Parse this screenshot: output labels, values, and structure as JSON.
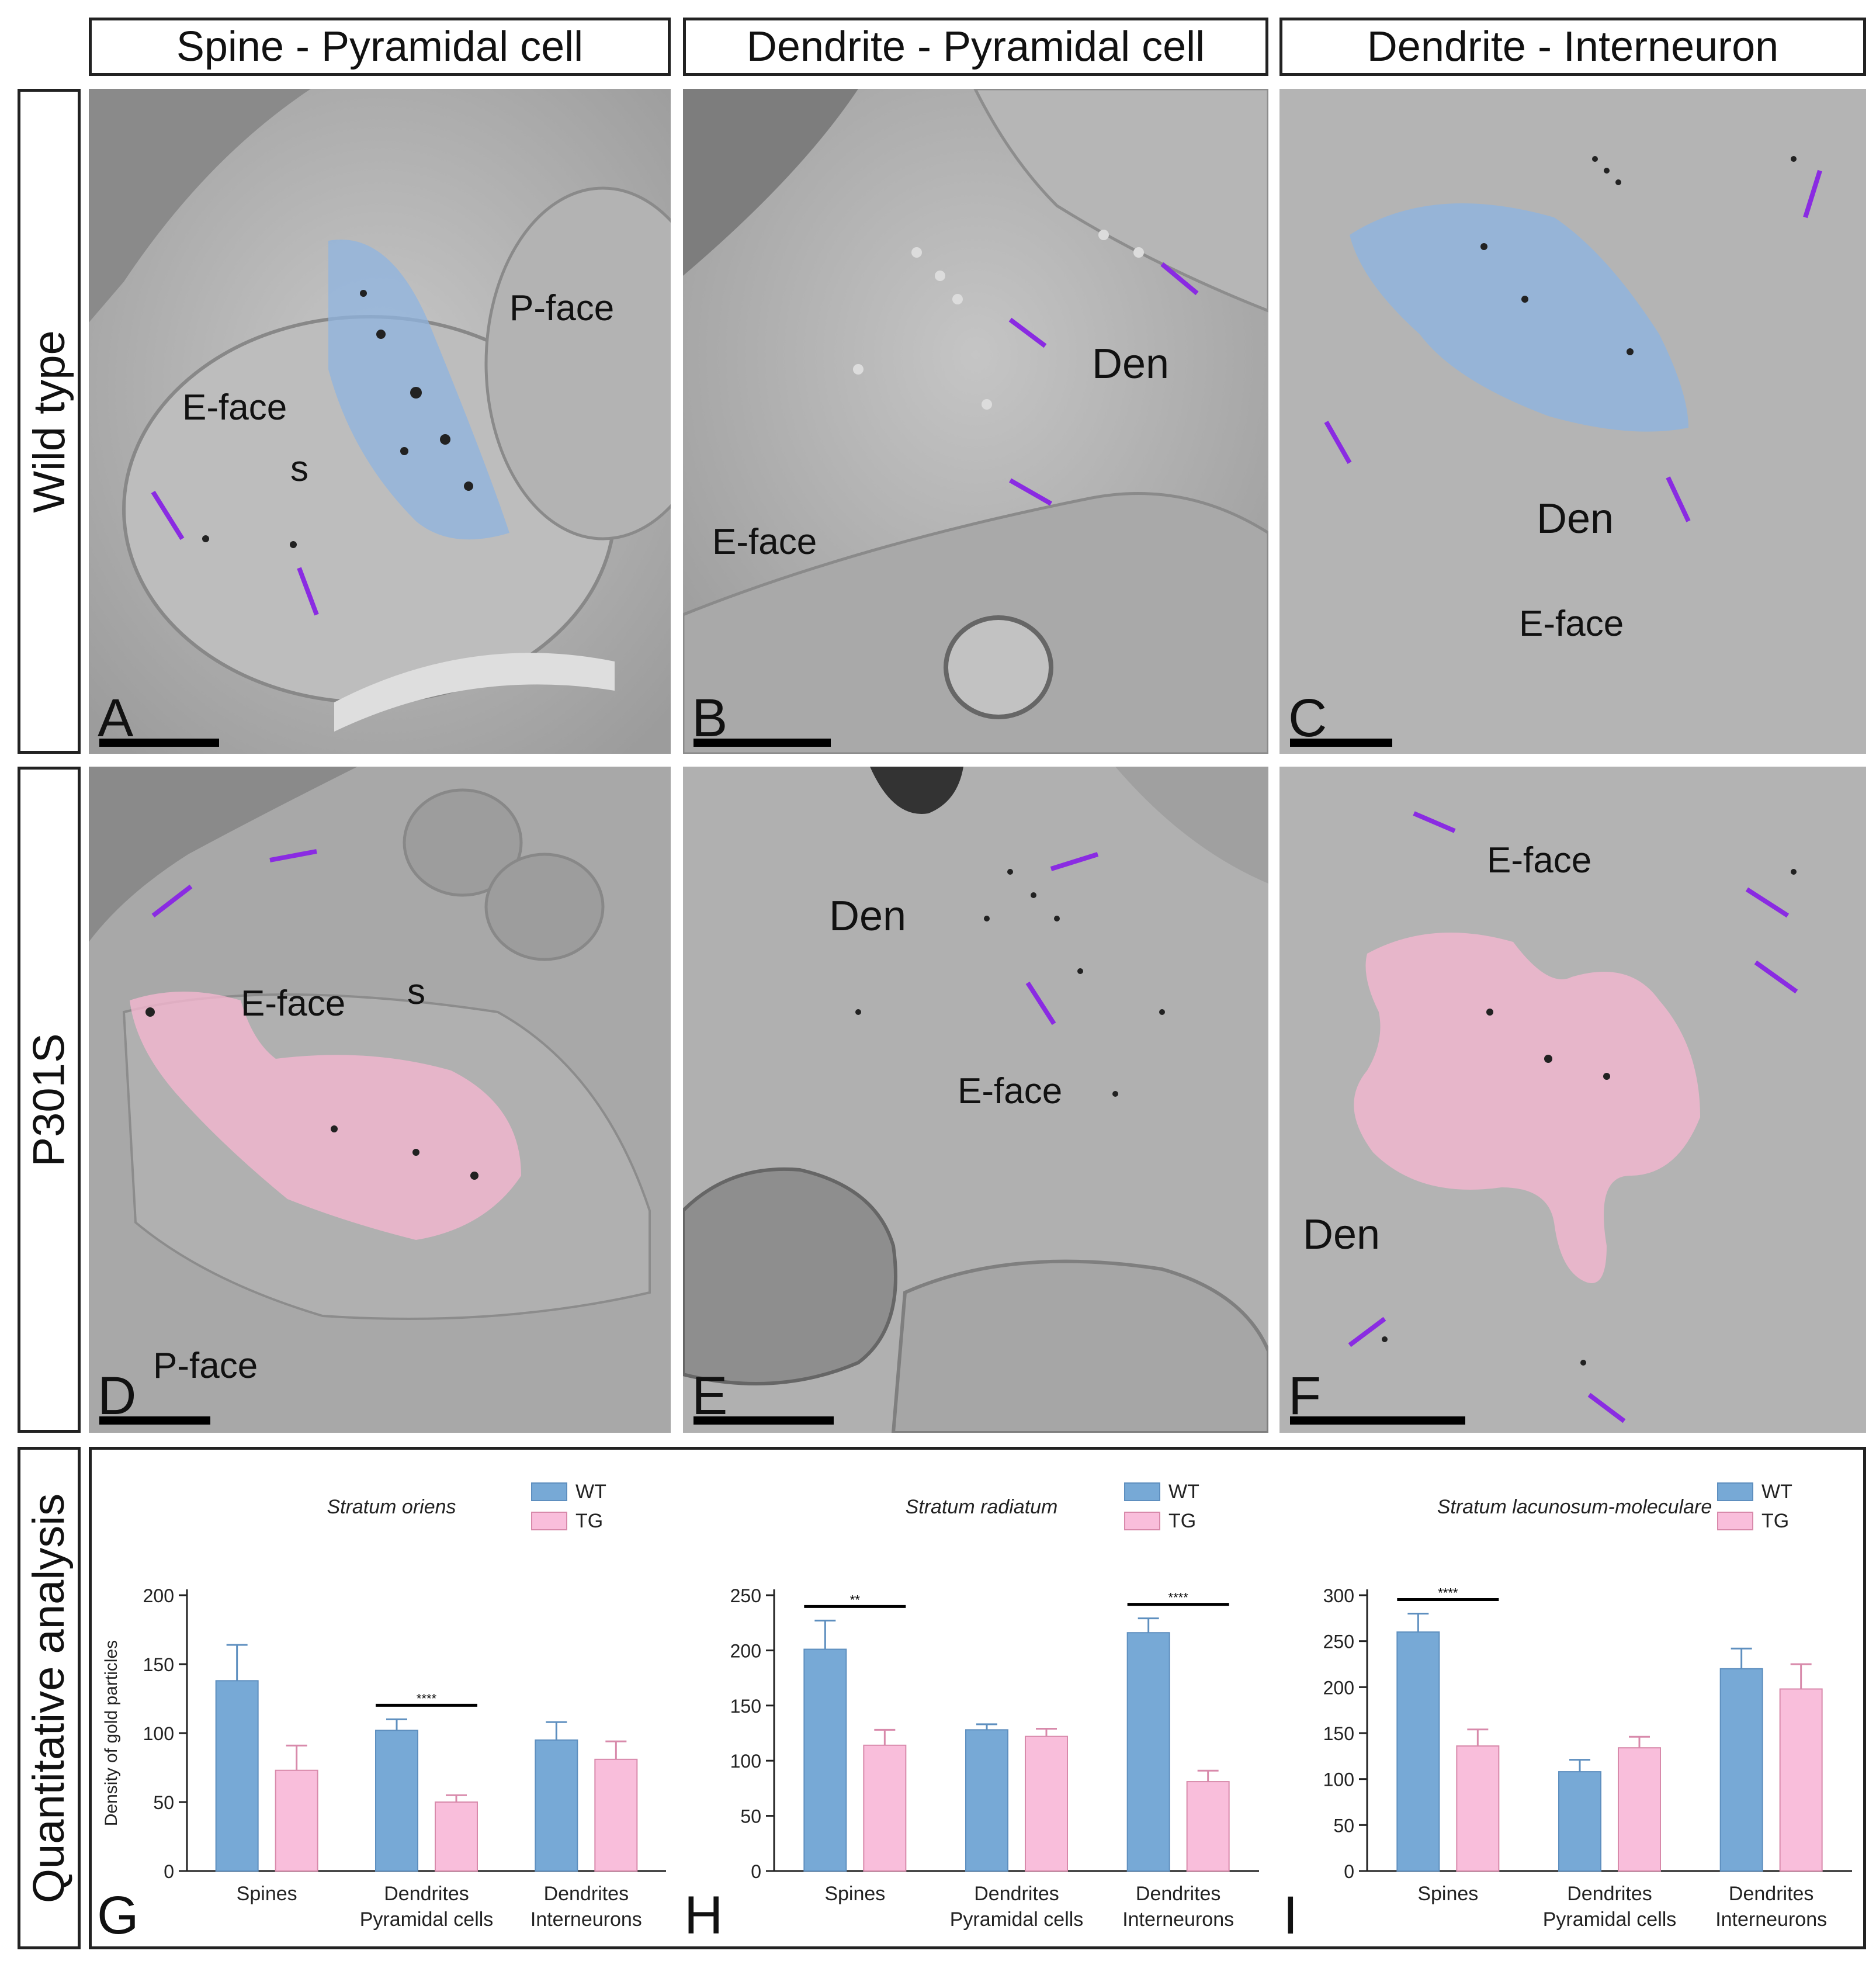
{
  "columns": [
    "Spine - Pyramidal cell",
    "Dendrite - Pyramidal cell",
    "Dendrite - Interneuron"
  ],
  "rows": [
    "Wild type",
    "P301S",
    "Quantitative analysis"
  ],
  "panels": {
    "A": {
      "letter": "A",
      "labels": [
        "E-face",
        "s",
        "P-face"
      ]
    },
    "B": {
      "letter": "B",
      "labels": [
        "Den",
        "E-face"
      ]
    },
    "C": {
      "letter": "C",
      "labels": [
        "Den",
        "E-face"
      ]
    },
    "D": {
      "letter": "D",
      "labels": [
        "E-face",
        "s",
        "P-face"
      ]
    },
    "E": {
      "letter": "E",
      "labels": [
        "Den",
        "E-face"
      ]
    },
    "F": {
      "letter": "F",
      "labels": [
        "E-face",
        "Den"
      ]
    }
  },
  "colors": {
    "wt": "#77a9d6",
    "tg": "#f9bedb",
    "arrow": "#8a2be2",
    "overlay_blue": "#8fb4e0",
    "overlay_pink": "#f4b7cf"
  },
  "chart_data": [
    {
      "panel": "G",
      "type": "bar",
      "title": "Stratum oriens",
      "ylabel": "Density of gold particles",
      "ylim": [
        0,
        200
      ],
      "yticks": [
        0,
        50,
        100,
        150,
        200
      ],
      "categories": [
        [
          "Spines"
        ],
        [
          "Dendrites",
          "Pyramidal cells"
        ],
        [
          "Dendrites",
          "Interneurons"
        ]
      ],
      "legend": "top-right",
      "series": [
        {
          "name": "WT",
          "color": "#77a9d6",
          "values": [
            138,
            102,
            95
          ],
          "errors": [
            26,
            8,
            13
          ]
        },
        {
          "name": "TG",
          "color": "#f9bedb",
          "values": [
            73,
            50,
            81
          ],
          "errors": [
            18,
            5,
            13
          ]
        }
      ],
      "significance": [
        {
          "category": 1,
          "label": "****"
        }
      ]
    },
    {
      "panel": "H",
      "type": "bar",
      "title": "Stratum radiatum",
      "ylabel": "",
      "ylim": [
        0,
        250
      ],
      "yticks": [
        0,
        50,
        100,
        150,
        200,
        250
      ],
      "categories": [
        [
          "Spines"
        ],
        [
          "Dendrites",
          "Pyramidal cells"
        ],
        [
          "Dendrites",
          "Interneurons"
        ]
      ],
      "legend": "top-right",
      "series": [
        {
          "name": "WT",
          "color": "#77a9d6",
          "values": [
            201,
            128,
            216
          ],
          "errors": [
            26,
            5,
            13
          ]
        },
        {
          "name": "TG",
          "color": "#f9bedb",
          "values": [
            114,
            122,
            81
          ],
          "errors": [
            14,
            7,
            10
          ]
        }
      ],
      "significance": [
        {
          "category": 0,
          "label": "**"
        },
        {
          "category": 2,
          "label": "****"
        }
      ]
    },
    {
      "panel": "I",
      "type": "bar",
      "title": "Stratum lacunosum-moleculare",
      "ylabel": "",
      "ylim": [
        0,
        300
      ],
      "yticks": [
        0,
        50,
        100,
        150,
        200,
        250,
        300
      ],
      "categories": [
        [
          "Spines"
        ],
        [
          "Dendrites",
          "Pyramidal cells"
        ],
        [
          "Dendrites",
          "Interneurons"
        ]
      ],
      "legend": "top-right",
      "series": [
        {
          "name": "WT",
          "color": "#77a9d6",
          "values": [
            260,
            108,
            220
          ],
          "errors": [
            20,
            13,
            22
          ]
        },
        {
          "name": "TG",
          "color": "#f9bedb",
          "values": [
            136,
            134,
            198
          ],
          "errors": [
            18,
            12,
            27
          ]
        }
      ],
      "significance": [
        {
          "category": 0,
          "label": "****"
        }
      ]
    }
  ]
}
